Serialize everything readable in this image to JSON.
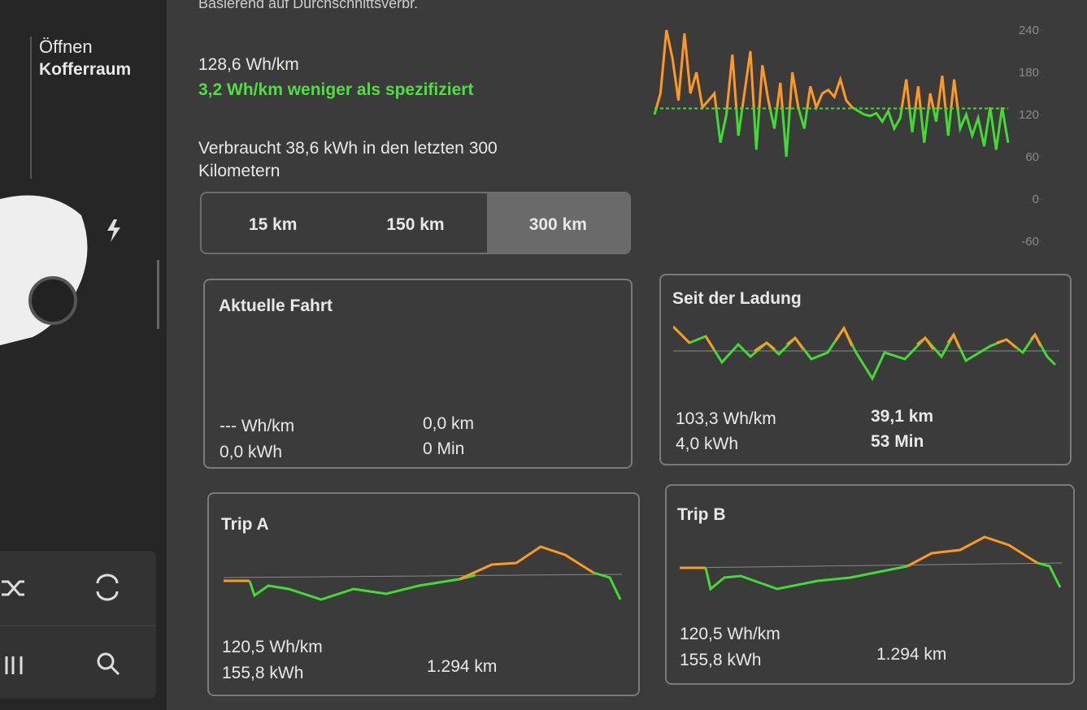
{
  "sidebar": {
    "open_label": "Öffnen",
    "trunk_label": "Kofferraum"
  },
  "header": {
    "note": "Basierend auf Durchschnittsverbr.",
    "average": "128,6 Wh/km",
    "difference": "3,2 Wh/km weniger als spezifiziert",
    "consumed": "Verbraucht 38,6 kWh in den letzten 300 Kilometern"
  },
  "range_tabs": {
    "options": [
      "15 km",
      "150 km",
      "300 km"
    ],
    "selected": 2
  },
  "chart_data": {
    "type": "line",
    "values": [
      120,
      150,
      240,
      200,
      140,
      235,
      150,
      180,
      130,
      140,
      150,
      80,
      120,
      205,
      90,
      150,
      210,
      70,
      190,
      140,
      100,
      165,
      60,
      180,
      130,
      100,
      160,
      130,
      150,
      155,
      145,
      170,
      140,
      130,
      125,
      120,
      118,
      122,
      110,
      125,
      100,
      115,
      170,
      95,
      160,
      80,
      150,
      110,
      175,
      90,
      170,
      100,
      120,
      90,
      115,
      75,
      130,
      70,
      130,
      80
    ],
    "reference_line": 128.6,
    "colors": {
      "above": "#ff9a1f",
      "below": "#3fdc32"
    },
    "ylim": [
      -60,
      240
    ],
    "yticks": [
      240,
      180,
      120,
      60,
      0,
      -60
    ]
  },
  "cards": [
    {
      "title": "Aktuelle Fahrt",
      "stats": [
        "--- Wh/km",
        "0,0 km",
        "0,0 kWh",
        "0 Min"
      ]
    },
    {
      "title": "Seit der Ladung",
      "stats": [
        "103,3 Wh/km",
        "39,1 km",
        "4,0 kWh",
        "53 Min"
      ]
    },
    {
      "title": "Trip A",
      "stats": [
        "120,5 Wh/km",
        "155,8 kWh",
        "1.294 km"
      ]
    },
    {
      "title": "Trip B",
      "stats": [
        "120,5 Wh/km",
        "155,8 kWh",
        "1.294 km"
      ]
    }
  ]
}
